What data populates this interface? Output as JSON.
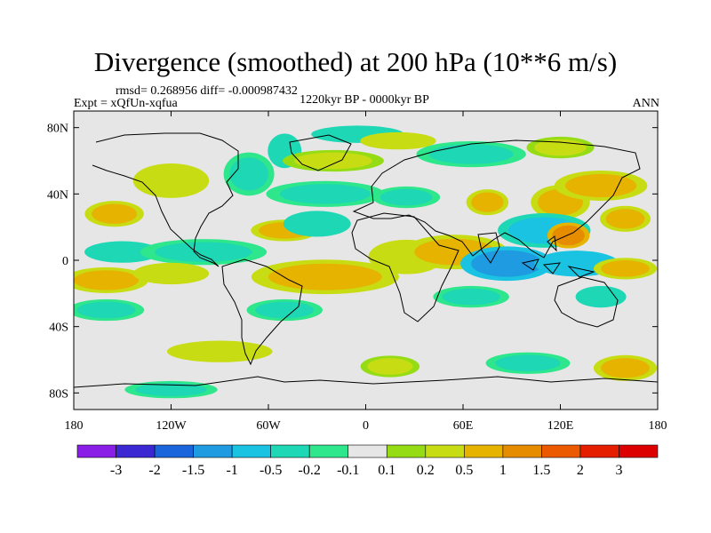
{
  "title": "Divergence (smoothed) at 200 hPa (10**6 m/s)",
  "stats": "rmsd= 0.268956 diff= -0.000987432",
  "experiment": "Expt = xQfUn-xqfua",
  "period": "1220kyr BP - 0000kyr BP",
  "season": "ANN",
  "axes": {
    "lat_ticks": [
      "80N",
      "40N",
      "0",
      "40S",
      "80S"
    ],
    "lon_ticks": [
      "180",
      "120W",
      "60W",
      "0",
      "60E",
      "120E",
      "180"
    ]
  },
  "colorbar": {
    "labels": [
      "-3",
      "-2",
      "-1.5",
      "-1",
      "-0.5",
      "-0.2",
      "-0.1",
      "0.1",
      "0.2",
      "0.5",
      "1",
      "1.5",
      "2",
      "3"
    ],
    "colors": [
      "#8a1ee6",
      "#3c28d2",
      "#1a64dc",
      "#1e9be1",
      "#19c3e1",
      "#1ed7b4",
      "#2ee68c",
      "#e6e6e6",
      "#96dc14",
      "#c8dc14",
      "#e6b400",
      "#e68c00",
      "#eb5a00",
      "#e61e00",
      "#dc0000"
    ]
  },
  "chart_data": {
    "type": "heatmap",
    "title": "Divergence (smoothed) at 200 hPa (10**6 m/s)",
    "levels": [
      -3,
      -2,
      -1.5,
      -1,
      -0.5,
      -0.2,
      -0.1,
      0.1,
      0.2,
      0.5,
      1,
      1.5,
      2,
      3
    ],
    "lon_range": [
      -180,
      180
    ],
    "lat_range": [
      -90,
      90
    ],
    "regions": [
      {
        "lon": -155,
        "lat": 28,
        "rx": 14,
        "ry": 6,
        "v": 0.6
      },
      {
        "lon": -120,
        "lat": 48,
        "rx": 18,
        "ry": 8,
        "v": 0.4
      },
      {
        "lon": -72,
        "lat": 52,
        "rx": 12,
        "ry": 10,
        "v": -0.3
      },
      {
        "lon": -50,
        "lat": 66,
        "rx": 8,
        "ry": 8,
        "v": -0.5
      },
      {
        "lon": -20,
        "lat": 60,
        "rx": 24,
        "ry": 5,
        "v": 0.3
      },
      {
        "lon": -5,
        "lat": 76,
        "rx": 22,
        "ry": 4,
        "v": -0.4
      },
      {
        "lon": 20,
        "lat": 72,
        "rx": 18,
        "ry": 4,
        "v": 0.4
      },
      {
        "lon": 65,
        "lat": 64,
        "rx": 26,
        "ry": 6,
        "v": -0.3
      },
      {
        "lon": 120,
        "lat": 68,
        "rx": 16,
        "ry": 5,
        "v": 0.3
      },
      {
        "lon": -25,
        "lat": 40,
        "rx": 28,
        "ry": 6,
        "v": -0.3
      },
      {
        "lon": -50,
        "lat": 18,
        "rx": 16,
        "ry": 5,
        "v": 0.5
      },
      {
        "lon": -30,
        "lat": 22,
        "rx": 16,
        "ry": 6,
        "v": -0.4
      },
      {
        "lon": 25,
        "lat": 38,
        "rx": 16,
        "ry": 5,
        "v": -0.3
      },
      {
        "lon": 75,
        "lat": 35,
        "rx": 10,
        "ry": 6,
        "v": 0.6
      },
      {
        "lon": 120,
        "lat": 35,
        "rx": 14,
        "ry": 8,
        "v": 0.8
      },
      {
        "lon": 145,
        "lat": 45,
        "rx": 22,
        "ry": 7,
        "v": 0.5
      },
      {
        "lon": 160,
        "lat": 25,
        "rx": 12,
        "ry": 6,
        "v": 0.8
      },
      {
        "lon": 110,
        "lat": 18,
        "rx": 22,
        "ry": 8,
        "v": -0.6
      },
      {
        "lon": -150,
        "lat": 5,
        "rx": 18,
        "ry": 5,
        "v": -0.5
      },
      {
        "lon": -100,
        "lat": 5,
        "rx": 30,
        "ry": 6,
        "v": -0.3
      },
      {
        "lon": -160,
        "lat": -12,
        "rx": 20,
        "ry": 6,
        "v": 0.6
      },
      {
        "lon": -120,
        "lat": -8,
        "rx": 18,
        "ry": 5,
        "v": 0.4
      },
      {
        "lon": -25,
        "lat": -10,
        "rx": 35,
        "ry": 8,
        "v": 0.8
      },
      {
        "lon": 25,
        "lat": 2,
        "rx": 18,
        "ry": 8,
        "v": 0.4
      },
      {
        "lon": 55,
        "lat": 5,
        "rx": 25,
        "ry": 8,
        "v": 0.8
      },
      {
        "lon": 87,
        "lat": -2,
        "rx": 22,
        "ry": 8,
        "v": -1.5
      },
      {
        "lon": 130,
        "lat": -2,
        "rx": 20,
        "ry": 6,
        "v": -1.0
      },
      {
        "lon": 160,
        "lat": -5,
        "rx": 15,
        "ry": 5,
        "v": 0.5
      },
      {
        "lon": 125,
        "lat": 15,
        "rx": 10,
        "ry": 6,
        "v": 1.0
      },
      {
        "lon": -160,
        "lat": -30,
        "rx": 18,
        "ry": 5,
        "v": -0.3
      },
      {
        "lon": -50,
        "lat": -30,
        "rx": 18,
        "ry": 5,
        "v": -0.3
      },
      {
        "lon": 65,
        "lat": -22,
        "rx": 18,
        "ry": 5,
        "v": -0.3
      },
      {
        "lon": 145,
        "lat": -22,
        "rx": 12,
        "ry": 5,
        "v": -0.4
      },
      {
        "lon": -90,
        "lat": -55,
        "rx": 25,
        "ry": 5,
        "v": 0.4
      },
      {
        "lon": -120,
        "lat": -78,
        "rx": 22,
        "ry": 4,
        "v": -0.3
      },
      {
        "lon": 15,
        "lat": -64,
        "rx": 14,
        "ry": 5,
        "v": 0.3
      },
      {
        "lon": 100,
        "lat": -62,
        "rx": 20,
        "ry": 5,
        "v": -0.3
      },
      {
        "lon": 160,
        "lat": -65,
        "rx": 15,
        "ry": 6,
        "v": 0.5
      }
    ]
  }
}
